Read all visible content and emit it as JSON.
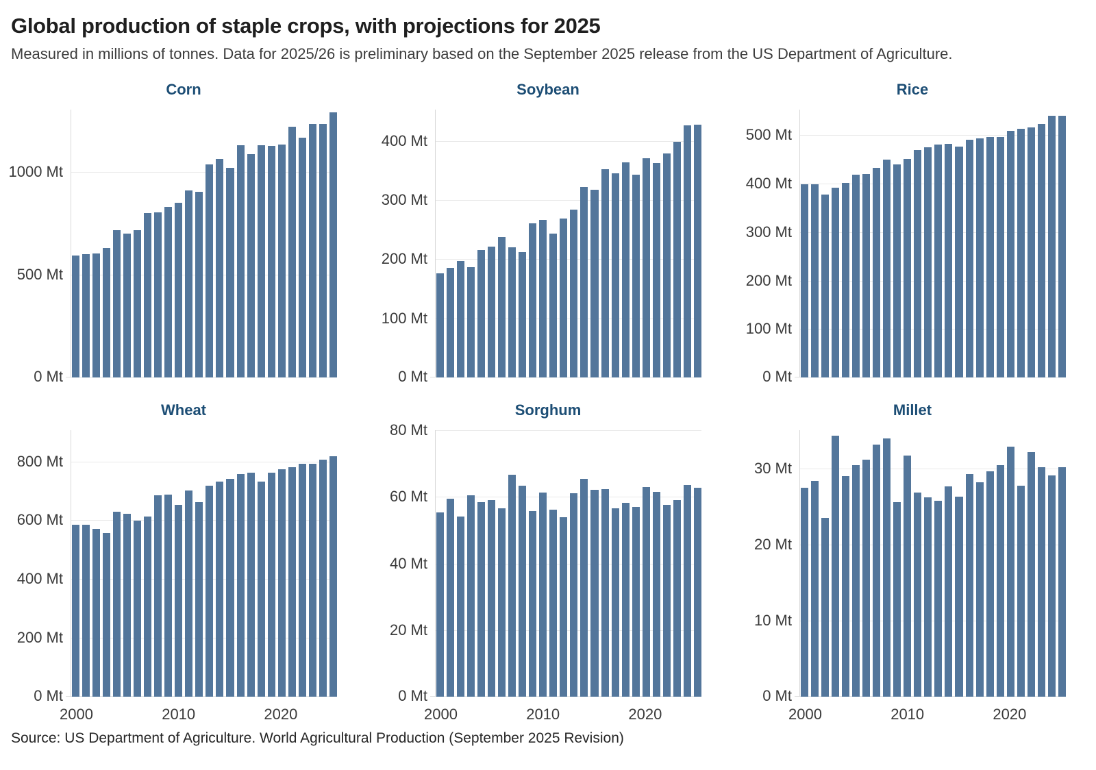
{
  "header": {
    "title": "Global production of staple crops, with projections for 2025",
    "subtitle": "Measured in millions of tonnes. Data for 2025/26 is preliminary based on the September 2025 release from the US Department of Agriculture."
  },
  "source": "Source: US Department of Agriculture. World Agricultural Production (September 2025 Revision)",
  "unit_suffix": "Mt",
  "colors": {
    "bar": "#53769b",
    "chart_title": "#1d4e75",
    "gridline": "#e9e9e9",
    "axis_line": "#d8d8d8"
  },
  "years": [
    2000,
    2001,
    2002,
    2003,
    2004,
    2005,
    2006,
    2007,
    2008,
    2009,
    2010,
    2011,
    2012,
    2013,
    2014,
    2015,
    2016,
    2017,
    2018,
    2019,
    2020,
    2021,
    2022,
    2023,
    2024,
    2025
  ],
  "chart_data": [
    {
      "type": "bar",
      "title": "Corn",
      "unit": "Mt",
      "x_range": [
        2000,
        2025
      ],
      "values": [
        592,
        601,
        604,
        628,
        716,
        700,
        715,
        799,
        804,
        830,
        848,
        909,
        901,
        1035,
        1062,
        1019,
        1129,
        1085,
        1130,
        1126,
        1131,
        1218,
        1164,
        1233,
        1231,
        1290
      ],
      "y_ticks": [
        0,
        500,
        1000
      ],
      "ylim": [
        0,
        1302
      ],
      "x_ticks": [
        2000,
        2010,
        2020
      ],
      "show_x_labels": false,
      "grid": true,
      "legend": "none"
    },
    {
      "type": "bar",
      "title": "Soybean",
      "unit": "Mt",
      "x_range": [
        2000,
        2025
      ],
      "values": [
        176,
        185,
        197,
        186,
        216,
        221,
        237,
        220,
        212,
        261,
        266,
        243,
        269,
        284,
        322,
        317,
        352,
        345,
        364,
        343,
        371,
        363,
        379,
        398,
        426,
        427
      ],
      "y_ticks": [
        0,
        100,
        200,
        300,
        400
      ],
      "ylim": [
        0,
        453
      ],
      "x_ticks": [
        2000,
        2010,
        2020
      ],
      "show_x_labels": false,
      "grid": true,
      "legend": "none"
    },
    {
      "type": "bar",
      "title": "Rice",
      "unit": "Mt",
      "x_range": [
        2000,
        2025
      ],
      "values": [
        399,
        399,
        378,
        392,
        402,
        418,
        420,
        433,
        450,
        440,
        451,
        469,
        475,
        481,
        483,
        476,
        491,
        493,
        497,
        497,
        509,
        513,
        516,
        523,
        541,
        541
      ],
      "y_ticks": [
        0,
        100,
        200,
        300,
        400,
        500
      ],
      "ylim": [
        0,
        553
      ],
      "x_ticks": [
        2000,
        2010,
        2020
      ],
      "show_x_labels": false,
      "grid": true,
      "legend": "none"
    },
    {
      "type": "bar",
      "title": "Wheat",
      "unit": "Mt",
      "x_range": [
        2000,
        2025
      ],
      "values": [
        584,
        585,
        571,
        557,
        629,
        621,
        598,
        613,
        685,
        687,
        652,
        700,
        661,
        718,
        732,
        740,
        758,
        762,
        731,
        761,
        773,
        781,
        791,
        793,
        805,
        817
      ],
      "y_ticks": [
        0,
        200,
        400,
        600,
        800
      ],
      "ylim": [
        0,
        906
      ],
      "x_ticks": [
        2000,
        2010,
        2020
      ],
      "show_x_labels": true,
      "grid": true,
      "legend": "none"
    },
    {
      "type": "bar",
      "title": "Sorghum",
      "unit": "Mt",
      "x_range": [
        2000,
        2025
      ],
      "values": [
        55.4,
        59.5,
        54.1,
        60.4,
        58.4,
        59.1,
        56.5,
        66.6,
        63.3,
        55.8,
        61.2,
        56.1,
        53.9,
        61.0,
        65.4,
        62.2,
        62.4,
        56.5,
        58.3,
        57.0,
        62.9,
        61.4,
        57.5,
        59.0,
        63.5,
        62.7
      ],
      "y_ticks": [
        0,
        20,
        40,
        60,
        80
      ],
      "ylim": [
        0,
        80
      ],
      "x_ticks": [
        2000,
        2010,
        2020
      ],
      "show_x_labels": true,
      "grid": true,
      "legend": "none"
    },
    {
      "type": "bar",
      "title": "Millet",
      "unit": "Mt",
      "x_range": [
        2000,
        2025
      ],
      "values": [
        27.4,
        28.3,
        23.5,
        34.3,
        29.0,
        30.4,
        31.1,
        33.1,
        33.9,
        25.6,
        31.7,
        26.8,
        26.2,
        25.7,
        27.6,
        26.3,
        29.2,
        28.2,
        29.6,
        30.4,
        32.8,
        27.7,
        32.1,
        30.1,
        29.1,
        30.1
      ],
      "y_ticks": [
        0,
        10,
        20,
        30
      ],
      "ylim": [
        0,
        35
      ],
      "x_ticks": [
        2000,
        2010,
        2020
      ],
      "show_x_labels": true,
      "grid": true,
      "legend": "none"
    }
  ]
}
